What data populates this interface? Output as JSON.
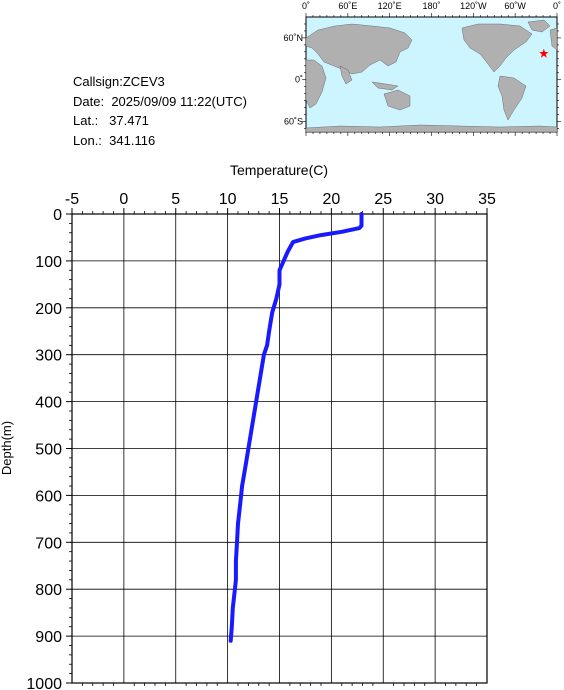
{
  "header": {
    "callsign_label": "Callsign:",
    "callsign": "ZCEV3",
    "date_label": "Date:",
    "date": "2025/09/09 11:22(UTC)",
    "lat_label": "Lat.:",
    "lat": "37.471",
    "lon_label": "Lon.:",
    "lon": "341.116"
  },
  "map": {
    "top_ticks": [
      "0˚",
      "60˚E",
      "120˚E",
      "180˚",
      "120˚W",
      "60˚W",
      "0˚"
    ],
    "left_ticks": [
      "60˚N",
      "0˚",
      "60˚S"
    ],
    "ocean_color": "#cdf5ff",
    "land_color": "#b0b0b0",
    "marker_color": "#ff0000",
    "marker_shape": "star",
    "marker_lon": 341.116,
    "marker_lat": 37.471
  },
  "chart_data": {
    "type": "line",
    "xlabel": "Temperature(C)",
    "ylabel": "Depth(m)",
    "x_axis_position": "top",
    "y_axis_inverted": true,
    "xlim": [
      -5,
      35
    ],
    "ylim": [
      0,
      1000
    ],
    "xticks": [
      "-5",
      "0",
      "5",
      "10",
      "15",
      "20",
      "25",
      "30",
      "35"
    ],
    "yticks": [
      "0",
      "100",
      "200",
      "300",
      "400",
      "500",
      "600",
      "700",
      "800",
      "900",
      "1000"
    ],
    "grid": true,
    "line_color": "#1a1aff",
    "series": [
      {
        "x": [
          22.9,
          22.9,
          22.7,
          21.0,
          19.0,
          17.5,
          16.3,
          15.8,
          15.4,
          15.0,
          15.0,
          14.7,
          14.3,
          14.0,
          13.8,
          13.5,
          13.2,
          12.9,
          12.6,
          12.3,
          12.0,
          11.7,
          11.4,
          11.2,
          11.0,
          10.9,
          10.8,
          10.8,
          10.7,
          10.5,
          10.4,
          10.3
        ],
        "y": [
          0,
          25,
          30,
          38,
          45,
          52,
          60,
          80,
          100,
          120,
          150,
          180,
          210,
          250,
          280,
          300,
          340,
          380,
          420,
          460,
          500,
          540,
          580,
          620,
          660,
          700,
          740,
          780,
          800,
          840,
          880,
          910
        ]
      }
    ]
  }
}
